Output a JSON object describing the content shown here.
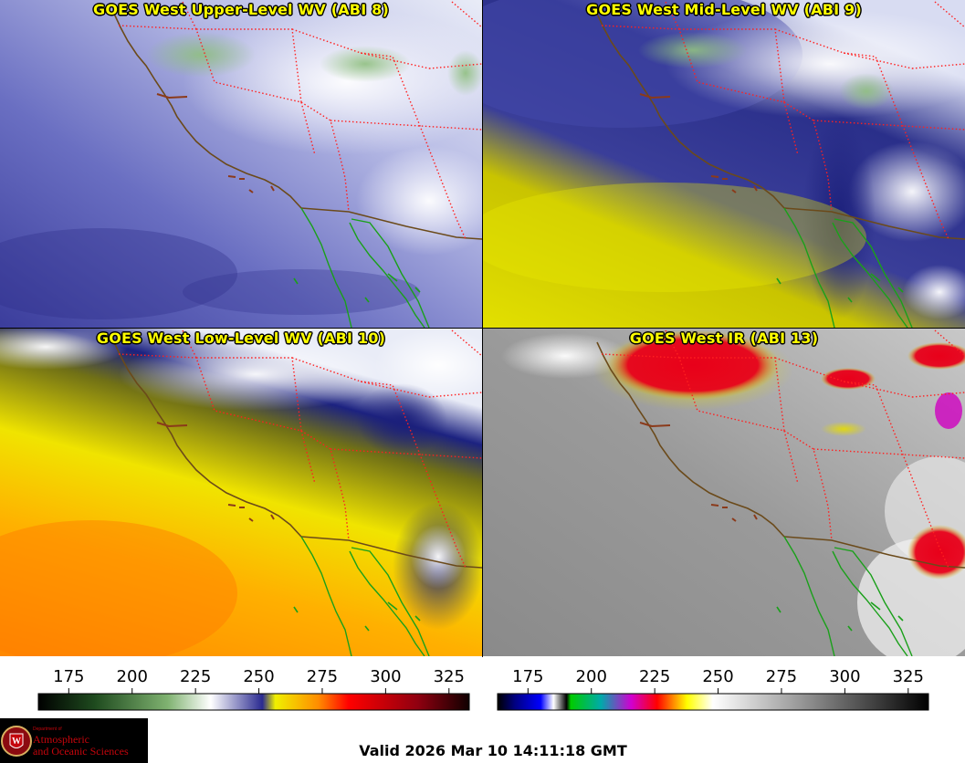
{
  "panels": [
    {
      "title": "GOES West Upper-Level WV (ABI 8)"
    },
    {
      "title": "GOES West Mid-Level WV (ABI 9)"
    },
    {
      "title": "GOES West Low-Level WV (ABI 10)"
    },
    {
      "title": "GOES West IR (ABI 13)"
    }
  ],
  "colorbars": [
    {
      "ticks": [
        "175",
        "200",
        "225",
        "250",
        "275",
        "300",
        "325"
      ],
      "palette": "water-vapor"
    },
    {
      "ticks": [
        "175",
        "200",
        "225",
        "250",
        "275",
        "300",
        "325"
      ],
      "palette": "infrared"
    }
  ],
  "logo": {
    "department": "Department of",
    "line1": "Atmospheric",
    "line2": "and Oceanic Sciences",
    "icon": "university-crest-icon"
  },
  "valid_time": "Valid 2026 Mar 10 14:11:18 GMT",
  "colors": {
    "title_text": "#ffff00",
    "coastline": "#6b4a1a",
    "state_borders": "#ff2020",
    "mexico_coast": "#1aa01a"
  }
}
